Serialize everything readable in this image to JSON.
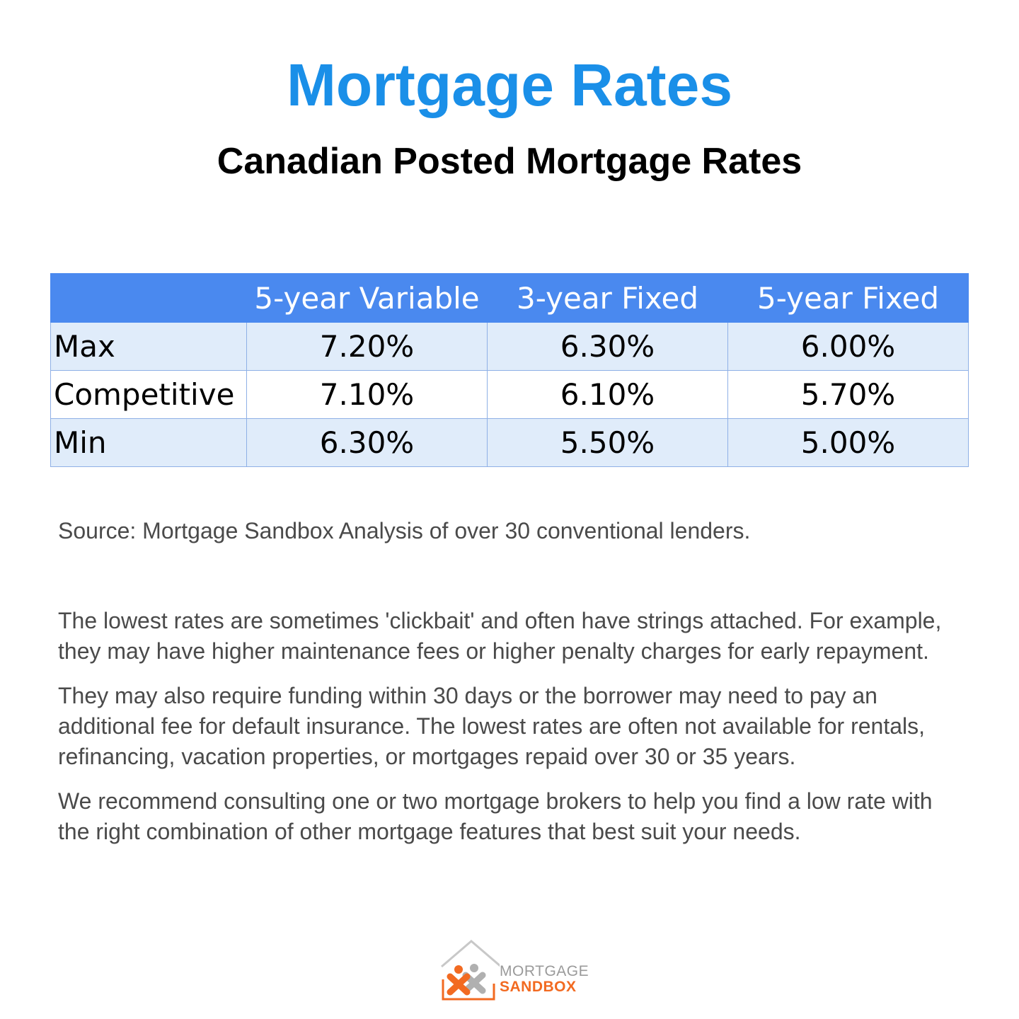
{
  "header": {
    "title": "Mortgage Rates",
    "subtitle": "Canadian Posted Mortgage Rates"
  },
  "table": {
    "columns": [
      "",
      "5-year Variable",
      "3-year Fixed",
      "5-year Fixed"
    ],
    "rows": [
      {
        "label": "Max",
        "values": [
          "7.20%",
          "6.30%",
          "6.00%"
        ]
      },
      {
        "label": "Competitive",
        "values": [
          "7.10%",
          "6.10%",
          "5.70%"
        ]
      },
      {
        "label": "Min",
        "values": [
          "6.30%",
          "5.50%",
          "5.00%"
        ]
      }
    ]
  },
  "source": "Source: Mortgage Sandbox Analysis of over 30 conventional lenders.",
  "paragraphs": [
    "The lowest rates are sometimes 'clickbait' and often have strings attached. For example, they may have higher maintenance fees or higher penalty charges for early repayment.",
    "They may also require funding within 30 days or the borrower may need to pay an additional fee for default insurance. The lowest rates are often not available for rentals, refinancing, vacation properties, or mortgages repaid over 30 or 35 years.",
    "We recommend consulting one or two mortgage brokers to help you find a low rate with the right combination of other mortgage features that best suit your needs."
  ],
  "logo": {
    "line1": "MORTGAGE",
    "line2": "SANDBOX",
    "icon": "house-people-logo-icon"
  },
  "colors": {
    "title": "#1a8fe8",
    "table_header": "#4a89ef",
    "row_shade": "#e0ecfa",
    "logo_orange": "#f26a21",
    "logo_gray": "#9a9a9a"
  }
}
